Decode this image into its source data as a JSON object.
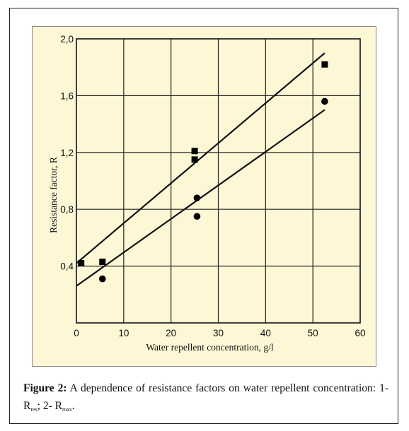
{
  "chart_data": {
    "type": "scatter",
    "xlabel": "Water repellent concentration, g/l",
    "ylabel": "Resistance factor, R",
    "xlim": [
      0,
      60
    ],
    "ylim": [
      0,
      2.0
    ],
    "x_ticks": [
      "0",
      "10",
      "20",
      "30",
      "40",
      "50",
      "60"
    ],
    "y_ticks": [
      "0,4",
      "0,8",
      "1,2",
      "1,6",
      "2,0"
    ],
    "grid": true,
    "series": [
      {
        "marker": "square",
        "points": [
          [
            1,
            0.42
          ],
          [
            5.5,
            0.43
          ],
          [
            25,
            1.21
          ],
          [
            25,
            1.15
          ],
          [
            52.5,
            1.82
          ]
        ],
        "fit_line": [
          [
            0,
            0.42
          ],
          [
            52.5,
            1.9
          ]
        ]
      },
      {
        "marker": "circle",
        "points": [
          [
            5.5,
            0.31
          ],
          [
            25.5,
            0.88
          ],
          [
            25.5,
            0.75
          ],
          [
            52.5,
            1.56
          ]
        ],
        "fit_line": [
          [
            0,
            0.26
          ],
          [
            52.5,
            1.5
          ]
        ]
      }
    ]
  },
  "caption": {
    "label": "Figure 2:",
    "text_before": " A dependence of resistance factors on water repellent concentration: 1- R",
    "sub1": "res",
    "text_middle": "; 2- R",
    "sub2": "max",
    "text_after": "."
  }
}
